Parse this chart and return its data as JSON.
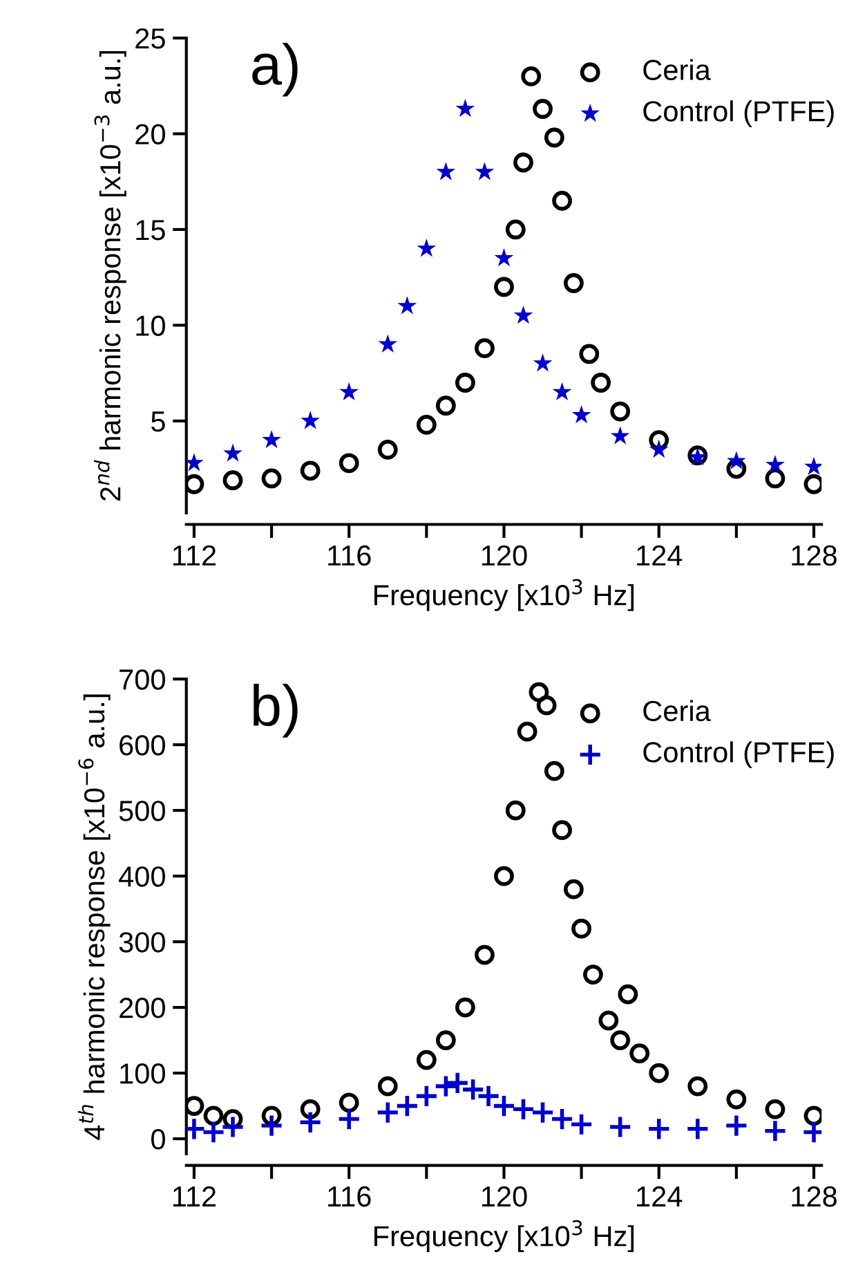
{
  "chart_data": [
    {
      "type": "scatter",
      "title": "a)",
      "xlabel": "Frequency [x10$^{3}$ Hz]",
      "ylabel": "2$^{nd}$ harmonic response [x10$^{−3}$ a.u.]",
      "xlim": [
        111.8,
        128.2
      ],
      "ylim": [
        0.2,
        25
      ],
      "xticks": [
        112,
        {
          "value": 114,
          "label": null
        },
        116,
        {
          "value": 118,
          "label": null
        },
        120,
        {
          "value": 122,
          "label": null
        },
        124,
        {
          "value": 126,
          "label": null
        },
        128
      ],
      "yticks": [
        5,
        10,
        15,
        20,
        25
      ],
      "grid": false,
      "legend": "top right",
      "series": [
        {
          "name": "Ceria",
          "color": "#000000",
          "marker": "circle",
          "x": [
            112,
            113,
            114,
            115,
            116,
            117,
            118,
            118.5,
            119,
            119.5,
            120,
            120.3,
            120.5,
            120.7,
            121,
            121.3,
            121.5,
            121.8,
            122.2,
            122.5,
            123,
            124,
            125,
            126,
            127,
            128
          ],
          "values": [
            1.7,
            1.9,
            2.0,
            2.4,
            2.8,
            3.5,
            4.8,
            5.8,
            7,
            8.8,
            12,
            15,
            18.5,
            23,
            21.3,
            19.8,
            16.5,
            12.2,
            8.5,
            7,
            5.5,
            4,
            3.2,
            2.5,
            2.0,
            1.7
          ]
        },
        {
          "name": "Control (PTFE)",
          "color": "#0000cc",
          "marker": "star",
          "x": [
            112,
            113,
            114,
            115,
            116,
            117,
            117.5,
            118,
            118.5,
            119,
            119.5,
            120,
            120.5,
            121,
            121.5,
            122,
            123,
            124,
            125,
            126,
            127,
            128
          ],
          "values": [
            2.8,
            3.3,
            4,
            5,
            6.5,
            9,
            11,
            14,
            18,
            21.3,
            18,
            13.5,
            10.5,
            8,
            6.5,
            5.3,
            4.2,
            3.5,
            3.1,
            2.9,
            2.7,
            2.6
          ]
        }
      ]
    },
    {
      "type": "scatter",
      "title": "b)",
      "xlabel": "Frequency [x10$^{3}$ Hz]",
      "ylabel": "4$^{th}$ harmonic response [x10$^{−6}$ a.u.]",
      "xlim": [
        111.8,
        128.2
      ],
      "ylim": [
        -23,
        700
      ],
      "xticks": [
        112,
        {
          "value": 114,
          "label": null
        },
        116,
        {
          "value": 118,
          "label": null
        },
        120,
        {
          "value": 122,
          "label": null
        },
        124,
        {
          "value": 126,
          "label": null
        },
        128
      ],
      "yticks": [
        0,
        100,
        200,
        300,
        400,
        500,
        600,
        700
      ],
      "grid": false,
      "legend": "top right",
      "series": [
        {
          "name": "Ceria",
          "color": "#000000",
          "marker": "circle",
          "x": [
            112,
            112.5,
            113,
            114,
            115,
            116,
            117,
            118,
            118.5,
            119,
            119.5,
            120,
            120.3,
            120.6,
            120.9,
            121.1,
            121.3,
            121.5,
            121.8,
            122,
            122.3,
            122.7,
            123,
            123.2,
            123.5,
            124,
            125,
            126,
            127,
            128
          ],
          "values": [
            50,
            35,
            30,
            35,
            45,
            55,
            80,
            120,
            150,
            200,
            280,
            400,
            500,
            620,
            680,
            660,
            560,
            470,
            380,
            320,
            250,
            180,
            150,
            220,
            130,
            100,
            80,
            60,
            45,
            35
          ]
        },
        {
          "name": "Control (PTFE)",
          "color": "#0000cc",
          "marker": "cross",
          "x": [
            112,
            112.5,
            113,
            114,
            115,
            116,
            117,
            117.5,
            118,
            118.5,
            118.8,
            119.2,
            119.6,
            120,
            120.5,
            121,
            121.5,
            122,
            123,
            124,
            125,
            126,
            127,
            128
          ],
          "values": [
            15,
            10,
            18,
            20,
            25,
            30,
            40,
            50,
            65,
            80,
            85,
            75,
            65,
            50,
            45,
            40,
            30,
            22,
            18,
            15,
            15,
            20,
            12,
            10
          ]
        }
      ]
    }
  ]
}
